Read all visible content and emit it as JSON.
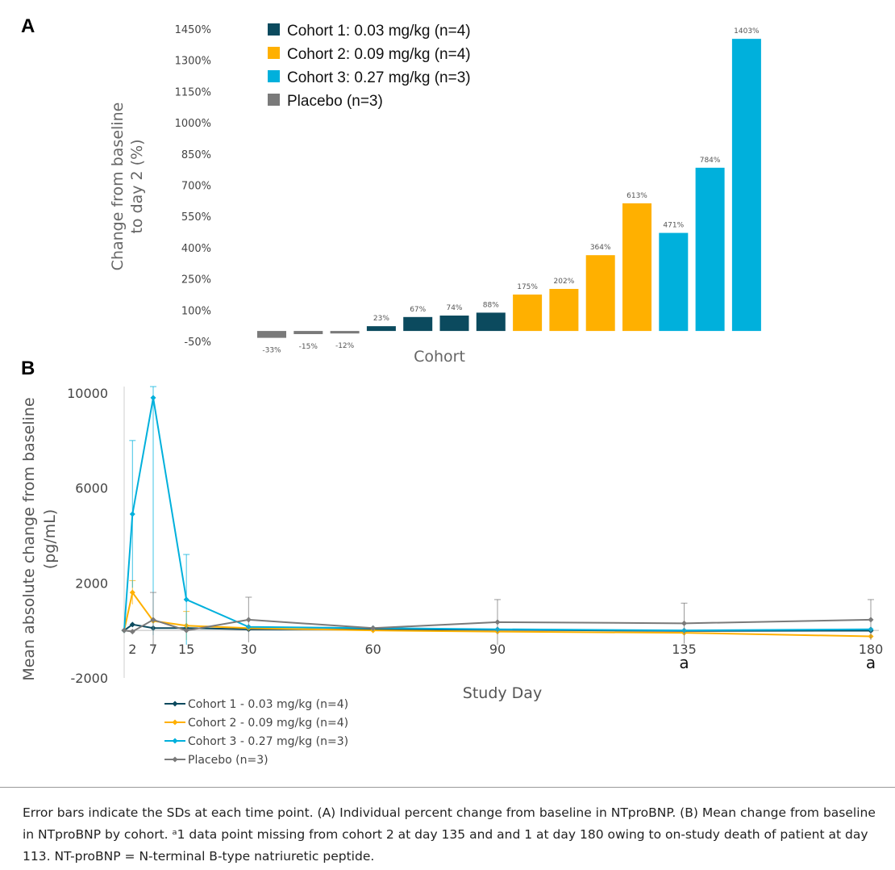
{
  "panel_a_letter": "A",
  "panel_b_letter": "B",
  "chart_data": [
    {
      "type": "bar",
      "ylabel_lines": [
        "Change from baseline",
        "to day 2 (%)"
      ],
      "xlabel": "Cohort",
      "ylim": [
        -50,
        1450
      ],
      "yticks": [
        -50,
        100,
        250,
        400,
        550,
        700,
        850,
        1000,
        1150,
        1300,
        1450
      ],
      "ytick_labels": [
        "-50%",
        "100%",
        "250%",
        "400%",
        "550%",
        "700%",
        "850%",
        "1000%",
        "1150%",
        "1300%",
        "1450%"
      ],
      "legend": [
        {
          "name": "Cohort 1: 0.03 mg/kg (n=4)",
          "color": "#0b4a5e"
        },
        {
          "name": "Cohort 2: 0.09 mg/kg (n=4)",
          "color": "#ffb000"
        },
        {
          "name": "Cohort 3: 0.27 mg/kg (n=3)",
          "color": "#00b0dc"
        },
        {
          "name": "Placebo (n=3)",
          "color": "#7a7a7a"
        }
      ],
      "bars": [
        {
          "value": -33,
          "label": "-33%",
          "group": "Placebo (n=3)"
        },
        {
          "value": -15,
          "label": "-15%",
          "group": "Placebo (n=3)"
        },
        {
          "value": -12,
          "label": "-12%",
          "group": "Placebo (n=3)"
        },
        {
          "value": 23,
          "label": "23%",
          "group": "Cohort 1: 0.03 mg/kg (n=4)"
        },
        {
          "value": 67,
          "label": "67%",
          "group": "Cohort 1: 0.03 mg/kg (n=4)"
        },
        {
          "value": 74,
          "label": "74%",
          "group": "Cohort 1: 0.03 mg/kg (n=4)"
        },
        {
          "value": 88,
          "label": "88%",
          "group": "Cohort 1: 0.03 mg/kg (n=4)"
        },
        {
          "value": 175,
          "label": "175%",
          "group": "Cohort 2: 0.09 mg/kg (n=4)"
        },
        {
          "value": 202,
          "label": "202%",
          "group": "Cohort 2: 0.09 mg/kg (n=4)"
        },
        {
          "value": 364,
          "label": "364%",
          "group": "Cohort 2: 0.09 mg/kg (n=4)"
        },
        {
          "value": 613,
          "label": "613%",
          "group": "Cohort 2: 0.09 mg/kg (n=4)"
        },
        {
          "value": 471,
          "label": "471%",
          "group": "Cohort 3: 0.27 mg/kg (n=3)"
        },
        {
          "value": 784,
          "label": "784%",
          "group": "Cohort 3: 0.27 mg/kg (n=3)"
        },
        {
          "value": 1403,
          "label": "1403%",
          "group": "Cohort 3: 0.27 mg/kg (n=3)"
        }
      ]
    },
    {
      "type": "line",
      "ylabel_lines": [
        "Mean absolute change from baseline",
        "(pg/mL)"
      ],
      "xlabel": "Study Day",
      "ylim": [
        -2000,
        10000
      ],
      "xlim": [
        0,
        180
      ],
      "yticks": [
        -2000,
        2000,
        6000,
        10000
      ],
      "xticks": [
        2,
        7,
        15,
        30,
        60,
        90,
        135,
        180
      ],
      "footnote_marks": [
        {
          "x": 135,
          "text": "a"
        },
        {
          "x": 180,
          "text": "a"
        }
      ],
      "series": [
        {
          "name": "Cohort 1 - 0.03 mg/kg (n=4)",
          "color": "#0b4a5e",
          "x": [
            0,
            2,
            7,
            15,
            30,
            60,
            90,
            135,
            180
          ],
          "y": [
            0,
            250,
            100,
            100,
            50,
            50,
            30,
            -20,
            -10
          ],
          "err": [
            0,
            0,
            0,
            0,
            0,
            0,
            0,
            0,
            0
          ]
        },
        {
          "name": "Cohort 2 - 0.09 mg/kg (n=4)",
          "color": "#ffb000",
          "x": [
            0,
            2,
            7,
            15,
            30,
            60,
            90,
            135,
            180
          ],
          "y": [
            0,
            1600,
            400,
            200,
            100,
            0,
            -50,
            -100,
            -250
          ],
          "err": [
            0,
            500,
            0,
            600,
            0,
            0,
            0,
            0,
            0
          ]
        },
        {
          "name": "Cohort 3 - 0.27 mg/kg (n=3)",
          "color": "#00b0dc",
          "x": [
            0,
            2,
            7,
            15,
            30,
            60,
            90,
            135,
            180
          ],
          "y": [
            0,
            4900,
            9800,
            1300,
            150,
            100,
            50,
            0,
            50
          ],
          "err": [
            0,
            3100,
            10000,
            1900,
            0,
            0,
            0,
            0,
            0
          ]
        },
        {
          "name": "Placebo (n=3)",
          "color": "#7a7a7a",
          "x": [
            0,
            2,
            7,
            15,
            30,
            60,
            90,
            135,
            180
          ],
          "y": [
            0,
            -50,
            450,
            0,
            450,
            100,
            350,
            300,
            450
          ],
          "err": [
            0,
            0,
            1150,
            0,
            950,
            0,
            950,
            850,
            850
          ]
        }
      ]
    }
  ],
  "caption": "Error bars indicate the SDs at each time point. (A) Individual percent change from baseline in NTproBNP. (B) Mean change from baseline in NTproBNP by cohort. ᵃ1 data point missing from cohort 2 at day 135 and and 1 at day 180 owing to on-study death of patient at day 113. NT-proBNP = N-terminal B-type natriuretic peptide."
}
